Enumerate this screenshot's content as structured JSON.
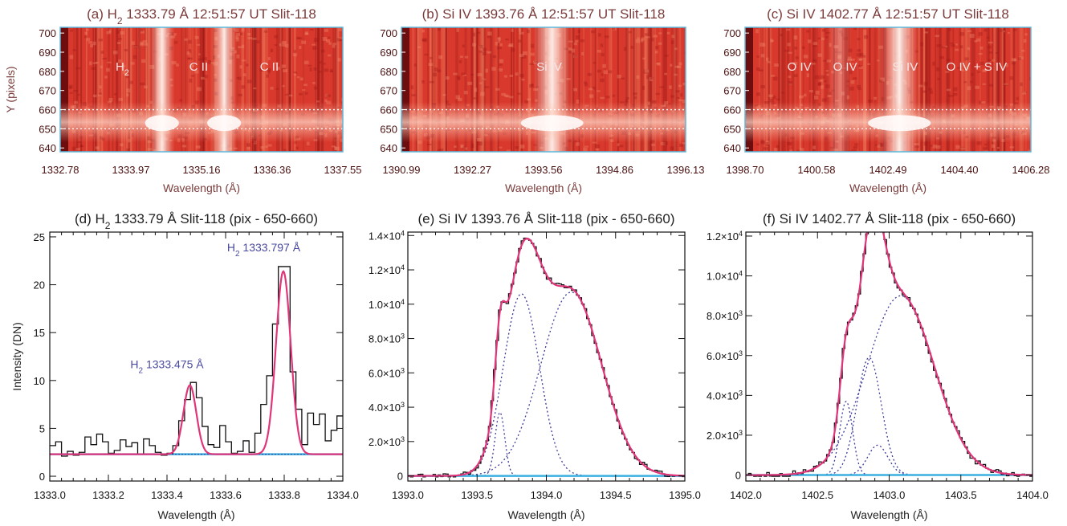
{
  "figure": {
    "colors": {
      "top_title": "#7b3b3b",
      "top_text": "#4a1010",
      "frame_blue": "#5fb8dc",
      "fit_line": "#e0357a",
      "component": "#3b3b9a",
      "baseline": "#3ab0e0",
      "annotation": "#4a4aa0"
    },
    "panels_top": [
      {
        "id": "a",
        "title_pre": "(a) H",
        "title_sub": "2",
        "title_post": " 1333.79 Å 12:51:57 UT Slit-118",
        "xlabel": "Wavelength (Å)",
        "ylabel": "Y (pixels)",
        "xticks": [
          "1332.78",
          "1333.97",
          "1335.16",
          "1336.36",
          "1337.55"
        ],
        "yticks": [
          "700",
          "690",
          "680",
          "670",
          "660",
          "650",
          "640"
        ],
        "labels": [
          {
            "text": "H",
            "sub": "2",
            "wl_frac": 0.22
          },
          {
            "text": "C II",
            "wl_frac": 0.49
          },
          {
            "text": "C II",
            "wl_frac": 0.74
          }
        ],
        "bright_cols": [
          0.36,
          0.58
        ],
        "dashed_y": [
          660,
          650
        ]
      },
      {
        "id": "b",
        "title_pre": "(b) Si IV 1393.76 Å 12:51:57 UT Slit-118",
        "title_sub": "",
        "title_post": "",
        "xlabel": "Wavelength (Å)",
        "ylabel": "",
        "xticks": [
          "1390.99",
          "1392.27",
          "1393.56",
          "1394.86",
          "1396.13"
        ],
        "yticks": [
          "700",
          "690",
          "680",
          "670",
          "660",
          "650",
          "640"
        ],
        "labels": [
          {
            "text": "Si IV",
            "wl_frac": 0.52
          }
        ],
        "bright_cols": [
          0.53
        ],
        "dashed_y": [
          660,
          650
        ]
      },
      {
        "id": "c",
        "title_pre": "(c) Si IV 1402.77 Å 12:51:57 UT Slit-118",
        "title_sub": "",
        "title_post": "",
        "xlabel": "Wavelength (Å)",
        "ylabel": "",
        "xticks": [
          "1398.70",
          "1400.58",
          "1402.49",
          "1404.40",
          "1406.28"
        ],
        "yticks": [
          "700",
          "690",
          "680",
          "670",
          "660",
          "650",
          "640"
        ],
        "labels": [
          {
            "text": "O IV",
            "wl_frac": 0.19
          },
          {
            "text": "O IV",
            "wl_frac": 0.35
          },
          {
            "text": "Si IV",
            "wl_frac": 0.56
          },
          {
            "text": "O IV + S IV",
            "wl_frac": 0.81
          }
        ],
        "bright_cols": [
          0.54,
          0.33
        ],
        "dashed_y": [
          660,
          650
        ]
      }
    ],
    "panels_bottom": [
      {
        "id": "d",
        "title_pre": "(d) H",
        "title_sub": "2",
        "title_post": " 1333.79 Å Slit-118 (pix - 650-660)",
        "xlabel": "Wavelength (Å)",
        "ylabel": "Intensity (DN)",
        "xlim": [
          1333.0,
          1334.0
        ],
        "ylim": [
          -0.5,
          25.5
        ],
        "xticks": [
          "1333.0",
          "1333.2",
          "1333.4",
          "1333.6",
          "1333.8",
          "1334.0"
        ],
        "yticks": [
          {
            "v": 0,
            "t": "0"
          },
          {
            "v": 5,
            "t": "5"
          },
          {
            "v": 10,
            "t": "10"
          },
          {
            "v": 15,
            "t": "15"
          },
          {
            "v": 20,
            "t": "20"
          },
          {
            "v": 25,
            "t": "25"
          }
        ],
        "annotations": [
          {
            "pre": "H",
            "sub": "2",
            "post": " 1333.475 Å",
            "x": 1333.4,
            "y": 11.3
          },
          {
            "pre": "H",
            "sub": "2",
            "post": " 1333.797 Å",
            "x": 1333.73,
            "y": 23.5
          }
        ]
      },
      {
        "id": "e",
        "title_pre": "(e) Si IV 1393.76 Å Slit-118 (pix - 650-660)",
        "title_sub": "",
        "title_post": "",
        "xlabel": "Wavelength (Å)",
        "ylabel": "",
        "xlim": [
          1393.0,
          1395.0
        ],
        "ylim": [
          -300,
          14200
        ],
        "xticks": [
          "1393.0",
          "1393.5",
          "1394.0",
          "1394.5",
          "1395.0"
        ],
        "yticks": [
          {
            "v": 0,
            "t": "0"
          },
          {
            "v": 2000,
            "m": "2.0",
            "e": "3"
          },
          {
            "v": 4000,
            "m": "4.0",
            "e": "3"
          },
          {
            "v": 6000,
            "m": "6.0",
            "e": "3"
          },
          {
            "v": 8000,
            "m": "8.0",
            "e": "3"
          },
          {
            "v": 10000,
            "m": "1.0",
            "e": "4"
          },
          {
            "v": 12000,
            "m": "1.2",
            "e": "4"
          },
          {
            "v": 14000,
            "m": "1.4",
            "e": "4"
          }
        ],
        "annotations": []
      },
      {
        "id": "f",
        "title_pre": "(f) Si IV 1402.77 Å Slit-118 (pix - 650-660)",
        "title_sub": "",
        "title_post": "",
        "xlabel": "Wavelength (Å)",
        "ylabel": "",
        "xlim": [
          1402.0,
          1404.0
        ],
        "ylim": [
          -300,
          12200
        ],
        "xticks": [
          "1402.0",
          "1402.5",
          "1403.0",
          "1403.5",
          "1404.0"
        ],
        "yticks": [
          {
            "v": 0,
            "t": "0"
          },
          {
            "v": 2000,
            "m": "2.0",
            "e": "3"
          },
          {
            "v": 4000,
            "m": "4.0",
            "e": "3"
          },
          {
            "v": 6000,
            "m": "6.0",
            "e": "3"
          },
          {
            "v": 8000,
            "m": "8.0",
            "e": "3"
          },
          {
            "v": 10000,
            "m": "1.0",
            "e": "4"
          },
          {
            "v": 12000,
            "m": "1.2",
            "e": "4"
          }
        ],
        "annotations": []
      }
    ]
  },
  "chart_data": [
    {
      "type": "line",
      "panel": "d",
      "xlabel": "Wavelength (Å)",
      "ylabel": "Intensity (DN)",
      "xlim": [
        1333.0,
        1334.0
      ],
      "ylim": [
        0,
        25
      ],
      "observed": {
        "x": [
          1333.0,
          1333.02,
          1333.04,
          1333.06,
          1333.08,
          1333.1,
          1333.12,
          1333.14,
          1333.16,
          1333.18,
          1333.2,
          1333.22,
          1333.24,
          1333.26,
          1333.28,
          1333.3,
          1333.32,
          1333.34,
          1333.36,
          1333.38,
          1333.4,
          1333.42,
          1333.44,
          1333.46,
          1333.48,
          1333.5,
          1333.52,
          1333.54,
          1333.56,
          1333.58,
          1333.6,
          1333.62,
          1333.64,
          1333.66,
          1333.68,
          1333.7,
          1333.72,
          1333.74,
          1333.76,
          1333.78,
          1333.8,
          1333.82,
          1333.84,
          1333.86,
          1333.88,
          1333.9,
          1333.92,
          1333.94,
          1333.96,
          1333.98
        ],
        "y": [
          3.2,
          3.6,
          2.1,
          2.6,
          2.2,
          2.5,
          4.1,
          3.3,
          4.4,
          3.6,
          2.4,
          2.7,
          3.8,
          3.1,
          3.5,
          2.3,
          3.9,
          3.2,
          2.5,
          2.2,
          2.4,
          3.2,
          5.8,
          8.0,
          9.8,
          8.2,
          5.2,
          3.3,
          3.0,
          5.3,
          3.6,
          2.4,
          2.6,
          3.7,
          2.5,
          4.5,
          7.5,
          10.5,
          15.9,
          21.9,
          21.9,
          10.9,
          7.0,
          3.3,
          6.6,
          5.4,
          6.5,
          3.7,
          4.8,
          6.3
        ]
      },
      "fit_lines": [
        {
          "name": "H2 1333.475 Å",
          "center": 1333.478,
          "amplitude": 7.2,
          "sigma": 0.022
        },
        {
          "name": "H2 1333.797 Å",
          "center": 1333.797,
          "amplitude": 19.1,
          "sigma": 0.025
        }
      ],
      "background": 2.3,
      "annotations": [
        "H2 1333.475 Å",
        "H2 1333.797 Å"
      ]
    },
    {
      "type": "line",
      "panel": "e",
      "xlabel": "Wavelength (Å)",
      "ylabel": "",
      "xlim": [
        1393.0,
        1395.0
      ],
      "ylim": [
        0,
        14000
      ],
      "components": [
        {
          "center": 1393.665,
          "amplitude": 3700,
          "sigma": 0.035
        },
        {
          "center": 1393.82,
          "amplitude": 10600,
          "sigma": 0.13
        },
        {
          "center": 1394.18,
          "amplitude": 10700,
          "sigma": 0.22
        }
      ],
      "background": 0
    },
    {
      "type": "line",
      "panel": "f",
      "xlabel": "Wavelength (Å)",
      "ylabel": "",
      "xlim": [
        1402.0,
        1404.0
      ],
      "ylim": [
        0,
        12000
      ],
      "components": [
        {
          "center": 1402.7,
          "amplitude": 3700,
          "sigma": 0.045
        },
        {
          "center": 1402.86,
          "amplitude": 5900,
          "sigma": 0.085
        },
        {
          "center": 1403.08,
          "amplitude": 9000,
          "sigma": 0.235
        },
        {
          "center": 1402.92,
          "amplitude": 1500,
          "sigma": 0.07
        }
      ],
      "background": 0
    }
  ]
}
